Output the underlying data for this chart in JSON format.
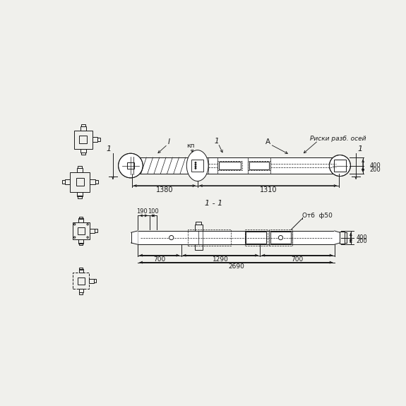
{
  "bg_color": "#f0f0ec",
  "line_color": "#1a1a1a",
  "view1": {
    "label_I": "I",
    "label_kp": "кп",
    "label_1": "1",
    "label_A": "А",
    "label_risks": "Риски разб. осей",
    "dim_1380": "1380",
    "dim_1310": "1310",
    "dim_200": "200",
    "dim_400": "400"
  },
  "view2": {
    "label_11": "1 - 1",
    "label_otv": "Отб  ф50",
    "dim_190": "190",
    "dim_100": "100",
    "dim_700l": "700",
    "dim_1290": "1290",
    "dim_700r": "700",
    "dim_2690": "2690",
    "dim_200": "200",
    "dim_400": "400"
  }
}
